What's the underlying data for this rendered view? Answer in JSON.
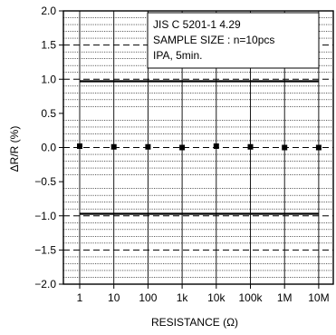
{
  "chart_data": {
    "type": "scatter",
    "categories": [
      "1",
      "10",
      "100",
      "1k",
      "10k",
      "100k",
      "1M",
      "10M"
    ],
    "series": [
      {
        "values": [
          0.02,
          0.01,
          0.01,
          0.0,
          0.02,
          0.01,
          0.0,
          0.0
        ]
      }
    ],
    "limits": {
      "solid": [
        0.97,
        -0.97
      ],
      "dashed": [
        1.5,
        1.0,
        -1.0,
        -1.5
      ]
    },
    "ylim": [
      -2.0,
      2.0
    ],
    "yticks": [
      "2.0",
      "1.5",
      "1.0",
      "0.5",
      "0.0",
      "−0.5",
      "−1.0",
      "−1.5",
      "−2.0"
    ],
    "ytick_values": [
      2.0,
      1.5,
      1.0,
      0.5,
      0.0,
      -0.5,
      -1.0,
      -1.5,
      -2.0
    ],
    "minor_grid_step": 0.1,
    "xlabel": "RESISTANCE (Ω)",
    "ylabel": "ΔR/R (%)",
    "annotation": [
      "JIS C 5201-1 4.29",
      "SAMPLE SIZE : n=10pcs",
      "IPA, 5min."
    ],
    "grid": true,
    "colors": {
      "marks": "#000000",
      "grid": "#000000",
      "background": "#ffffff"
    }
  }
}
